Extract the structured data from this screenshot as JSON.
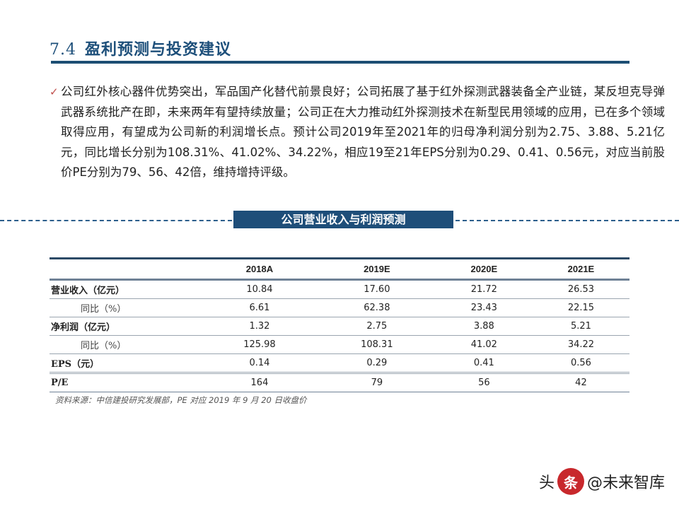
{
  "header": {
    "section_number": "7.4",
    "title": "盈利预测与投资建议"
  },
  "bullet": {
    "icon": "check-icon",
    "text": "公司红外核心器件优势突出，军品国产化替代前景良好；公司拓展了基于红外探测武器装备全产业链，某反坦克导弹武器系统批产在即，未来两年有望持续放量；公司正在大力推动红外探测技术在新型民用领域的应用，已在多个领域取得应用，有望成为公司新的利润增长点。预计公司2019年至2021年的归母净利润分别为2.75、3.88、5.21亿元，同比增长分别为108.31%、41.02%、34.22%，相应19至21年EPS分别为0.29、0.41、0.56元，对应当前股价PE分别为79、56、42倍，维持增持评级。"
  },
  "section_box": {
    "label": "公司营业收入与利润预测"
  },
  "table": {
    "columns": [
      "",
      "2018A",
      "2019E",
      "2020E",
      "2021E"
    ],
    "rows": [
      {
        "label": "营业收入（亿元）",
        "values": [
          "10.84",
          "17.60",
          "21.72",
          "26.53"
        ]
      },
      {
        "label": "同比（%）",
        "values": [
          "6.61",
          "62.38",
          "23.43",
          "22.15"
        ]
      },
      {
        "label": "净利润（亿元）",
        "values": [
          "1.32",
          "2.75",
          "3.88",
          "5.21"
        ]
      },
      {
        "label": "同比（%）",
        "values": [
          "125.98",
          "108.31",
          "41.02",
          "34.22"
        ]
      },
      {
        "label": "EPS（元）",
        "values": [
          "0.14",
          "0.29",
          "0.41",
          "0.56"
        ]
      },
      {
        "label": "P/E",
        "values": [
          "164",
          "79",
          "56",
          "42"
        ]
      }
    ]
  },
  "source": "资料来源：中信建投研究发展部，PE 对应 2019 年 9 月 20 日收盘价",
  "watermark": {
    "prefix": "头",
    "logo_char": "条",
    "text": "@未来智库"
  },
  "colors": {
    "title": "#1d4f7a",
    "rule": "#1c4e73",
    "check": "#c0504d",
    "box": "#1e4e79"
  }
}
